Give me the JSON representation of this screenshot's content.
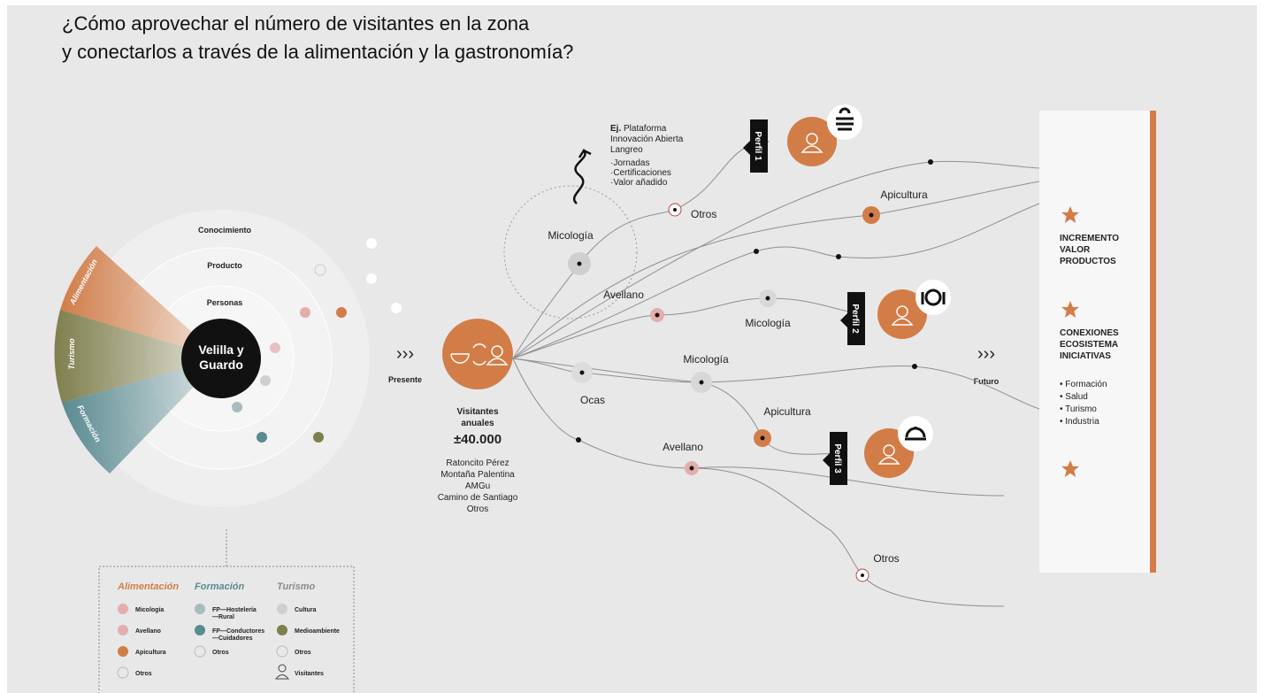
{
  "title": [
    "¿Cómo aprovechar el número de visitantes en la zona",
    "y conectarlos a través de la alimentación y la gastronomía?"
  ],
  "rings": [
    "Conocimiento",
    "Producto",
    "Personas"
  ],
  "hub": [
    "Velilla y",
    "Guardo"
  ],
  "sectors": [
    "Alimentación",
    "Turismo",
    "Formación"
  ],
  "stages": {
    "present": "Presente",
    "future": "Futuro"
  },
  "visitors": {
    "label": [
      "Visitantes",
      "anuales"
    ],
    "count": "±40.000",
    "sources": [
      "Ratoncito Pérez",
      "Montaña Palentina",
      "AMGu",
      "Camino de Santiago",
      "Otros"
    ]
  },
  "example": {
    "prefix": "Ej.",
    "name": [
      "Plataforma",
      "Innovación Abierta",
      "Langreo"
    ],
    "items": [
      "·Jornadas",
      "·Certificaciones",
      "·Valor añadido"
    ]
  },
  "nodes": [
    "Micología",
    "Otros",
    "Apicultura",
    "Avellano",
    "Micología",
    "Micología",
    "Ocas",
    "Apicultura",
    "Avellano",
    "Otros"
  ],
  "profiles": [
    "Perfil 1",
    "Perfil 2",
    "Perfil 3"
  ],
  "outcomes": [
    {
      "title": [
        "INCREMENTO",
        "VALOR",
        "PRODUCTOS"
      ]
    },
    {
      "title": [
        "CONEXIONES",
        "ECOSISTEMA",
        "INICIATIVAS"
      ],
      "items": [
        "• Formación",
        "• Salud",
        "• Turismo",
        "• Industria"
      ]
    }
  ],
  "legend": {
    "groups": [
      {
        "name": "Alimentación",
        "items": [
          [
            "Micología"
          ],
          [
            "Avellano"
          ],
          [
            "Apicultura"
          ],
          [
            "Otros"
          ]
        ]
      },
      {
        "name": "Formación",
        "items": [
          [
            "FP—Hostelería",
            "—Rural"
          ],
          [
            "FP—Conductores",
            "—Cuidadores"
          ],
          [
            "Otros"
          ]
        ]
      },
      {
        "name": "Turismo",
        "items": [
          [
            "Cultura"
          ],
          [
            "Medioambiente"
          ],
          [
            "Otros"
          ],
          [
            "Visitantes"
          ]
        ]
      }
    ]
  }
}
